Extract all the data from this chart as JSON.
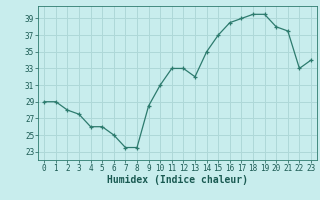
{
  "x": [
    0,
    1,
    2,
    3,
    4,
    5,
    6,
    7,
    8,
    9,
    10,
    11,
    12,
    13,
    14,
    15,
    16,
    17,
    18,
    19,
    20,
    21,
    22,
    23
  ],
  "y": [
    29,
    29,
    28,
    27.5,
    26,
    26,
    25,
    23.5,
    23.5,
    28.5,
    31,
    33,
    33,
    32,
    35,
    37,
    38.5,
    39,
    39.5,
    39.5,
    38,
    37.5,
    33,
    34
  ],
  "xlabel": "Humidex (Indice chaleur)",
  "xlim": [
    -0.5,
    23.5
  ],
  "ylim": [
    22,
    40.5
  ],
  "yticks": [
    23,
    25,
    27,
    29,
    31,
    33,
    35,
    37,
    39
  ],
  "xticks": [
    0,
    1,
    2,
    3,
    4,
    5,
    6,
    7,
    8,
    9,
    10,
    11,
    12,
    13,
    14,
    15,
    16,
    17,
    18,
    19,
    20,
    21,
    22,
    23
  ],
  "line_color": "#2d7b6e",
  "bg_color": "#c8eded",
  "grid_color": "#aed8d8",
  "axes_color": "#2d7b6e",
  "text_color": "#1a5a52",
  "tick_fontsize": 5.5,
  "label_fontsize": 7
}
